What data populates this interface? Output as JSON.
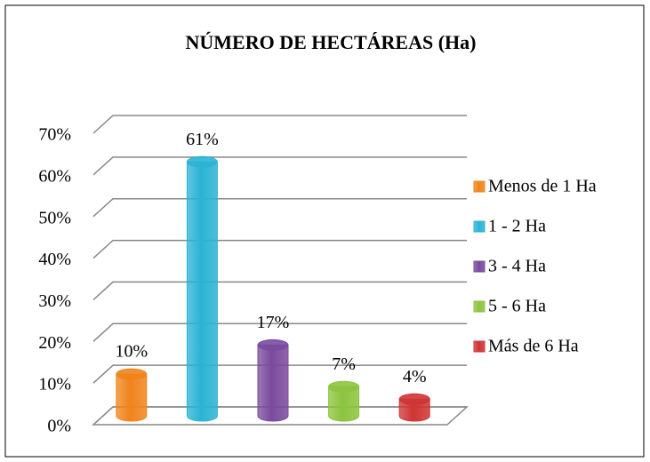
{
  "chart_data": {
    "type": "bar",
    "title": "NÚMERO DE HECTÁREAS (Ha)",
    "categories": [
      "Menos de 1 Ha",
      "1 - 2 Ha",
      "3 - 4 Ha",
      "5 - 6 Ha",
      "Más de 6 Ha"
    ],
    "values": [
      10,
      61,
      17,
      7,
      4
    ],
    "value_labels": [
      "10%",
      "61%",
      "17%",
      "7%",
      "4%"
    ],
    "colors": [
      "#f0841c",
      "#2bb3d4",
      "#7a4a9e",
      "#8cc43e",
      "#cf3434"
    ],
    "ylim": [
      0,
      70
    ],
    "yticks": [
      {
        "value": 0,
        "label": "0%"
      },
      {
        "value": 10,
        "label": "10%"
      },
      {
        "value": 20,
        "label": "20%"
      },
      {
        "value": 30,
        "label": "30%"
      },
      {
        "value": 40,
        "label": "40%"
      },
      {
        "value": 50,
        "label": "50%"
      },
      {
        "value": 60,
        "label": "60%"
      },
      {
        "value": 70,
        "label": "70%"
      }
    ],
    "grid": true,
    "legend": "right"
  }
}
